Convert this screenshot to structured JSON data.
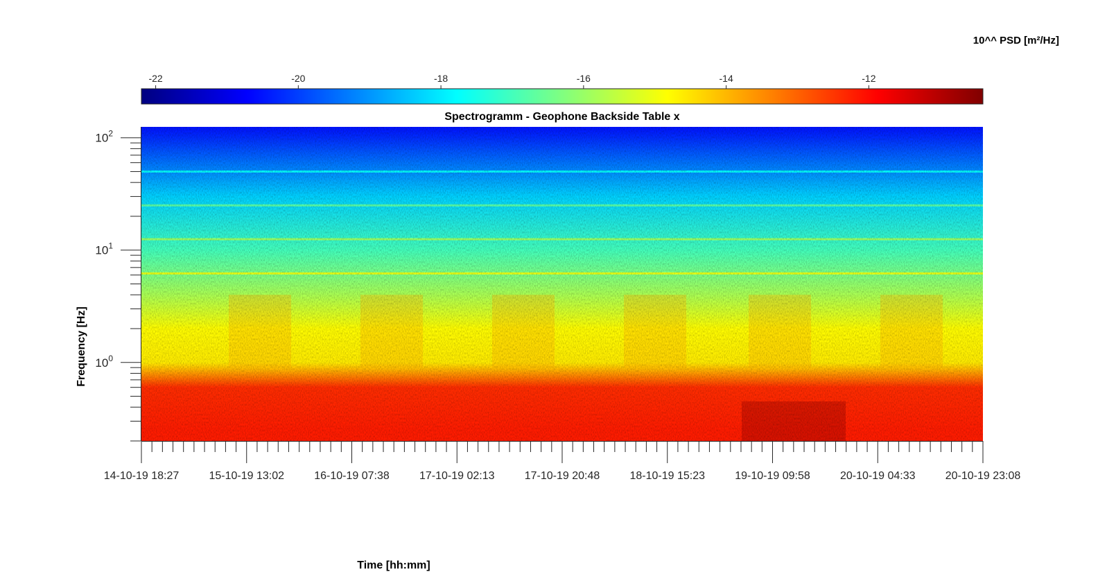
{
  "chart_data": {
    "type": "heatmap",
    "title": "Spectrogramm - Geophone Backside Table x",
    "xlabel": "Time [hh:mm]",
    "ylabel": "Frequency [Hz]",
    "y_scale": "log",
    "ylim": [
      0.2,
      125
    ],
    "y_ticks": [
      {
        "value": 1,
        "base": "10",
        "exp": "0"
      },
      {
        "value": 10,
        "base": "10",
        "exp": "1"
      },
      {
        "value": 100,
        "base": "10",
        "exp": "2"
      }
    ],
    "x_tick_labels": [
      "14-10-19 18:27",
      "15-10-19 13:02",
      "16-10-19 07:38",
      "17-10-19 02:13",
      "17-10-19 20:48",
      "18-10-19 15:23",
      "19-10-19 09:58",
      "20-10-19 04:33",
      "20-10-19 23:08"
    ],
    "colorbar": {
      "label": "10^^ PSD [m²/Hz]",
      "colormap": "jet",
      "range": [
        -22.2,
        -10.4
      ],
      "tick_values": [
        -22,
        -20,
        -18,
        -16,
        -14,
        -12
      ],
      "tick_labels": [
        "-22",
        "-20",
        "-18",
        "-16",
        "-14",
        "-12"
      ]
    },
    "grid": false,
    "approx_psd_profile_log10": [
      {
        "freq_hz": 0.25,
        "value": -12.2
      },
      {
        "freq_hz": 0.6,
        "value": -12.4
      },
      {
        "freq_hz": 1.0,
        "value": -14.6
      },
      {
        "freq_hz": 2.0,
        "value": -14.8
      },
      {
        "freq_hz": 4.0,
        "value": -15.8
      },
      {
        "freq_hz": 10,
        "value": -17.0
      },
      {
        "freq_hz": 30,
        "value": -18.3
      },
      {
        "freq_hz": 100,
        "value": -20.2
      }
    ],
    "spectral_lines_hz": [
      6.2,
      12.5,
      25,
      50
    ]
  }
}
